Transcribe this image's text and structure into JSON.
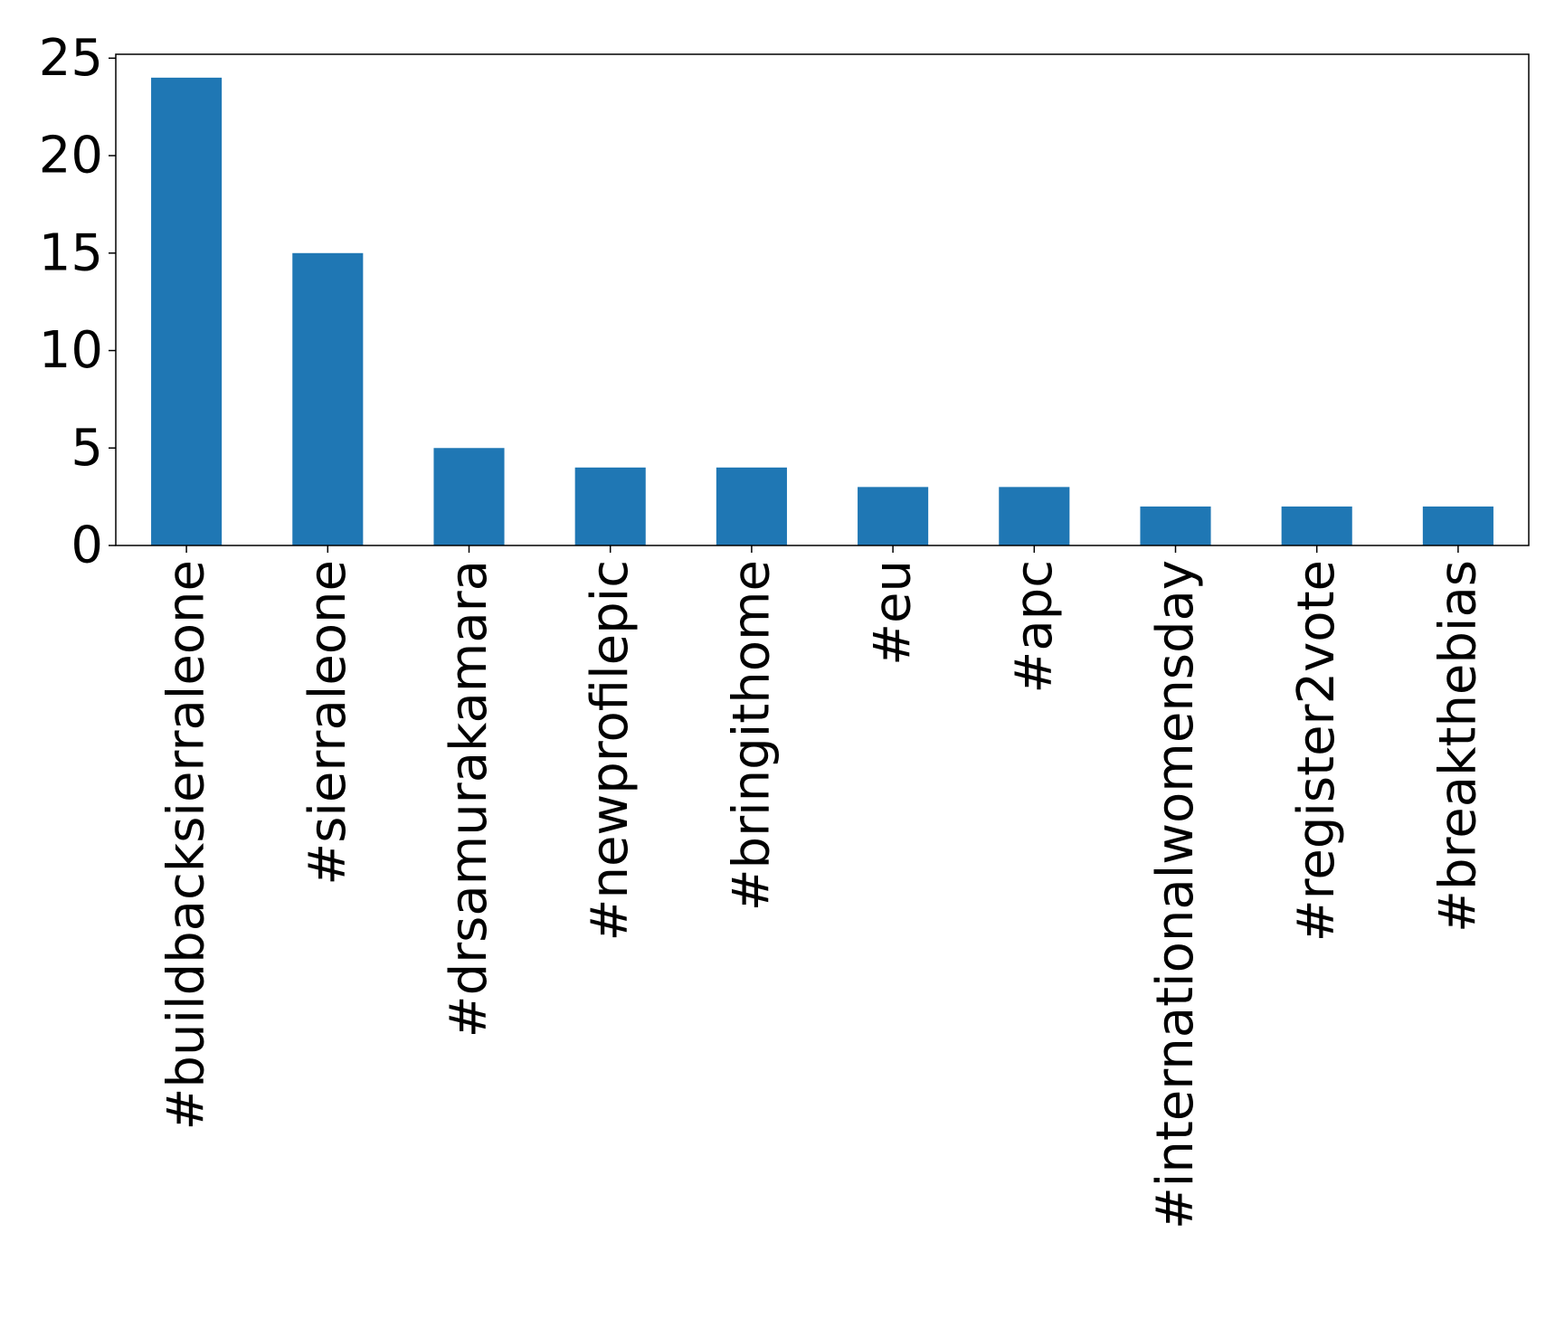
{
  "chart_data": {
    "type": "bar",
    "title": "",
    "xlabel": "",
    "ylabel": "",
    "categories": [
      "#buildbacksierraleone",
      "#sierraleone",
      "#drsamurakamara",
      "#newprofilepic",
      "#bringithome",
      "#eu",
      "#apc",
      "#internationalwomensday",
      "#register2vote",
      "#breakthebias"
    ],
    "values": [
      24,
      15,
      5,
      4,
      4,
      3,
      3,
      2,
      2,
      2
    ],
    "ylim": [
      0,
      25.2
    ],
    "yticks": [
      0,
      5,
      10,
      15,
      20,
      25
    ],
    "grid": false,
    "legend": "none",
    "bar_color": "#1f77b4",
    "axis_color": "#000000"
  }
}
